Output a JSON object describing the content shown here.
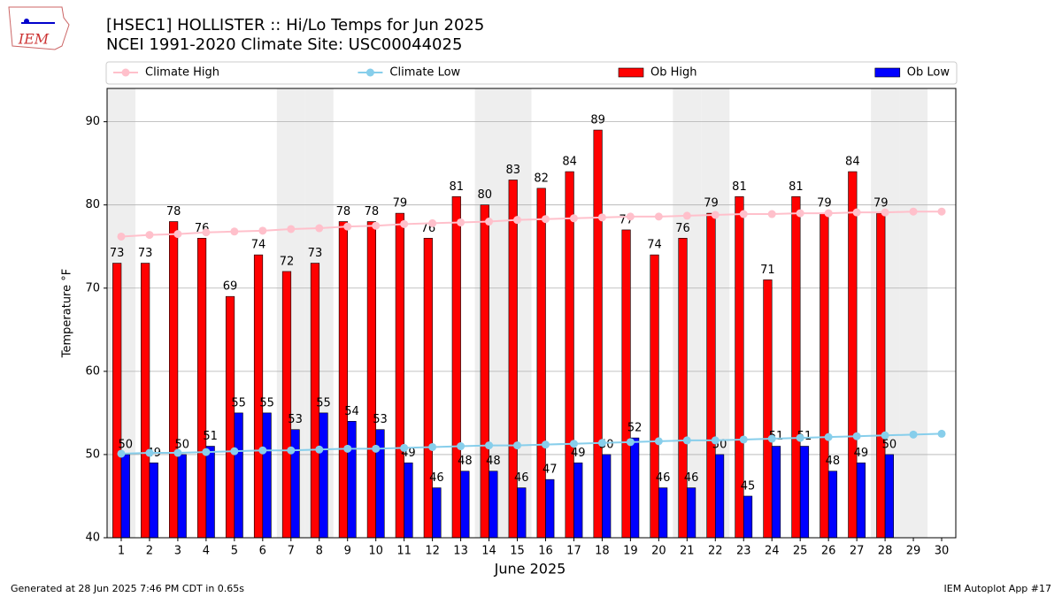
{
  "logo_text": "IEM",
  "footer_left": "Generated at 28 Jun 2025 7:46 PM CDT in 0.65s",
  "footer_right": "IEM Autoplot App #17",
  "chart_data": {
    "type": "bar",
    "title": "[HSEC1] HOLLISTER :: Hi/Lo Temps for Jun 2025",
    "subtitle": "NCEI 1991-2020 Climate Site: USC00044025",
    "x_label": "June 2025",
    "y_label": "Temperature °F",
    "categories": [
      "1",
      "2",
      "3",
      "4",
      "5",
      "6",
      "7",
      "8",
      "9",
      "10",
      "11",
      "12",
      "13",
      "14",
      "15",
      "16",
      "17",
      "18",
      "19",
      "20",
      "21",
      "22",
      "23",
      "24",
      "25",
      "26",
      "27",
      "28",
      "29",
      "30"
    ],
    "shaded_categories": [
      0,
      6,
      7,
      13,
      14,
      20,
      21,
      27,
      28
    ],
    "ylim": [
      40,
      94
    ],
    "yticks": [
      40,
      50,
      60,
      70,
      80,
      90
    ],
    "grid": true,
    "legend": "top",
    "series": [
      {
        "name": "Climate High",
        "type": "line",
        "color": "#ffc0cb",
        "values": [
          76.2,
          76.4,
          76.5,
          76.7,
          76.8,
          76.9,
          77.1,
          77.2,
          77.4,
          77.5,
          77.7,
          77.8,
          77.9,
          78.0,
          78.2,
          78.3,
          78.4,
          78.5,
          78.6,
          78.6,
          78.7,
          78.8,
          78.9,
          78.9,
          79.0,
          79.0,
          79.1,
          79.1,
          79.2,
          79.2
        ]
      },
      {
        "name": "Climate Low",
        "type": "line",
        "color": "#87ceeb",
        "values": [
          50.1,
          50.2,
          50.2,
          50.3,
          50.4,
          50.5,
          50.5,
          50.6,
          50.7,
          50.7,
          50.8,
          50.9,
          51.0,
          51.1,
          51.1,
          51.2,
          51.3,
          51.4,
          51.5,
          51.6,
          51.7,
          51.7,
          51.8,
          51.9,
          52.0,
          52.1,
          52.2,
          52.3,
          52.4,
          52.5
        ]
      },
      {
        "name": "Ob High",
        "type": "bar",
        "color": "#ff0000",
        "values": [
          73,
          73,
          78,
          76,
          69,
          74,
          72,
          73,
          78,
          78,
          79,
          76,
          81,
          80,
          83,
          82,
          84,
          89,
          77,
          74,
          76,
          79,
          81,
          71,
          81,
          79,
          84,
          79,
          null,
          null
        ]
      },
      {
        "name": "Ob Low",
        "type": "bar",
        "color": "#0000ff",
        "values": [
          50,
          49,
          50,
          51,
          55,
          55,
          53,
          55,
          54,
          53,
          49,
          46,
          48,
          48,
          46,
          47,
          49,
          50,
          52,
          46,
          46,
          50,
          45,
          51,
          51,
          48,
          49,
          50,
          null,
          null
        ]
      }
    ]
  }
}
